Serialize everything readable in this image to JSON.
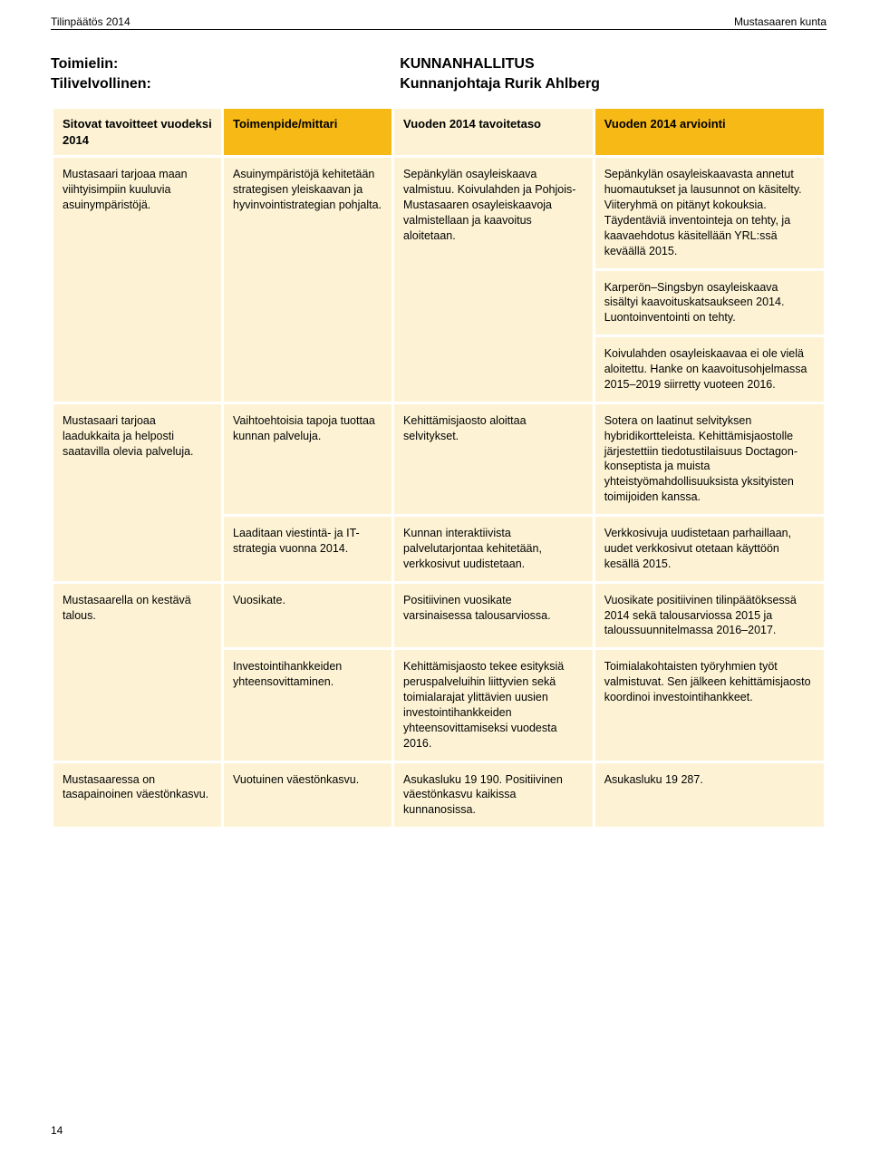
{
  "running_header": {
    "left": "Tilinpäätös 2014",
    "right": "Mustasaaren kunta"
  },
  "heading": {
    "label_body": "Toimielin:",
    "label_accountable": "Tilivelvollinen:",
    "body": "KUNNANHALLITUS",
    "accountable": "Kunnanjohtaja Rurik Ahlberg"
  },
  "columns": {
    "c1": "Sitovat tavoitteet vuodeksi 2014",
    "c2": "Toimenpide/mittari",
    "c3": "Vuoden 2014 tavoitetaso",
    "c4": "Vuoden 2014 arviointi"
  },
  "header_colors": {
    "c1": "#fdf3d4",
    "c2": "#f7b915",
    "c3": "#fdf3d4",
    "c4": "#f7b915"
  },
  "col_widths": [
    "22%",
    "22%",
    "26%",
    "30%"
  ],
  "rows": [
    {
      "c1": "Mustasaari tarjoaa maan viihtyisimpiin kuuluvia asuinympäristöjä.",
      "c2": "Asuinympäristöjä kehitetään strategisen yleiskaavan ja hyvinvointistrategian pohjalta.",
      "c3": "Sepänkylän osayleiskaava valmistuu. Koivulahden ja Pohjois-Mustasaaren osayleiskaavoja valmistellaan ja kaavoitus aloitetaan.",
      "c4": "Sepänkylän osayleiskaavasta annetut huomautukset ja lausunnot on käsitelty. Viiteryhmä on pitänyt kokouksia. Täydentäviä inventointeja on tehty, ja kaavaehdotus käsitellään YRL:ssä keväällä 2015.",
      "rowspan_c1": 3,
      "rowspan_c2": 3,
      "rowspan_c3": 3
    },
    {
      "c4": "Karperön–Singsbyn osayleiskaava sisältyi kaavoituskatsaukseen 2014. Luontoinventointi on tehty."
    },
    {
      "c4": "Koivulahden osayleiskaavaa ei ole vielä aloitettu. Hanke on kaavoitusohjelmassa 2015–2019 siirretty vuoteen 2016."
    },
    {
      "c1": "Mustasaari tarjoaa laadukkaita ja helposti saatavilla olevia palveluja.",
      "c2": "Vaihtoehtoisia tapoja tuottaa kunnan palveluja.",
      "c3": "Kehittämisjaosto aloittaa selvitykset.",
      "c4": "Sotera on laatinut selvityksen hybridikortteleista. Kehittämisjaostolle järjestettiin tiedotustilaisuus Doctagon-konseptista ja muista yhteistyömahdollisuuksista yksityisten toimijoiden kanssa.",
      "rowspan_c1": 2
    },
    {
      "c2": "Laaditaan viestintä- ja IT-strategia vuonna 2014.",
      "c3": "Kunnan interaktiivista palvelutarjontaa kehitetään, verkkosivut uudistetaan.",
      "c4": "Verkkosivuja uudistetaan parhaillaan, uudet verkkosivut otetaan käyttöön kesällä 2015."
    },
    {
      "c1": "Mustasaarella on kestävä talous.",
      "c2": "Vuosikate.",
      "c3": "Positiivinen vuosikate varsinaisessa talousarviossa.",
      "c4": "Vuosikate positiivinen tilinpäätöksessä 2014 sekä talousarviossa 2015 ja taloussuunnitelmassa 2016–2017.",
      "rowspan_c1": 2
    },
    {
      "c2": "Investointihankkeiden yhteensovittaminen.",
      "c3": "Kehittämisjaosto tekee esityksiä peruspalveluihin liittyvien sekä toimialarajat ylittävien uusien investointihankkeiden yhteensovittamiseksi vuodesta 2016.",
      "c4": "Toimialakohtaisten työryhmien työt valmistuvat. Sen jälkeen kehittämisjaosto koordinoi investointihankkeet."
    },
    {
      "c1": "Mustasaaressa on tasapainoinen väestönkasvu.",
      "c2": "Vuotuinen väestönkasvu.",
      "c3": "Asukasluku 19 190. Positiivinen väestönkasvu kaikissa kunnanosissa.",
      "c4": "Asukasluku 19 287."
    }
  ],
  "page_number": "14"
}
